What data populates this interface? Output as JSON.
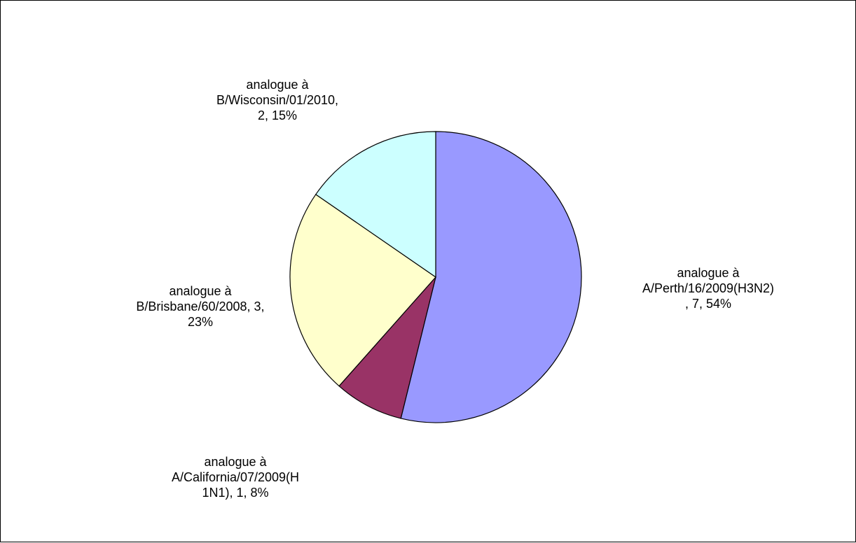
{
  "chart_data": {
    "type": "pie",
    "slices": [
      {
        "name": "analogue à A/Perth/16/2009(H3N2)",
        "value": 7,
        "percent": "54%",
        "color": "#9999ff",
        "label_lines": [
          "analogue à",
          "A/Perth/16/2009(H3N2)",
          ", 7, 54%"
        ]
      },
      {
        "name": "analogue à A/California/07/2009(H1N1)",
        "value": 1,
        "percent": "8%",
        "color": "#993366",
        "label_lines": [
          "analogue à",
          "A/California/07/2009(H",
          "1N1), 1, 8%"
        ]
      },
      {
        "name": "analogue à B/Brisbane/60/2008",
        "value": 3,
        "percent": "23%",
        "color": "#ffffcc",
        "label_lines": [
          "analogue à",
          "B/Brisbane/60/2008, 3,",
          "23%"
        ]
      },
      {
        "name": "analogue à B/Wisconsin/01/2010",
        "value": 2,
        "percent": "15%",
        "color": "#ccffff",
        "label_lines": [
          "analogue à",
          "B/Wisconsin/01/2010,",
          "2, 15%"
        ]
      }
    ]
  }
}
